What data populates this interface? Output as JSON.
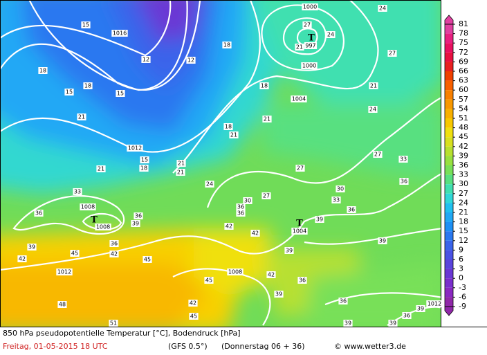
{
  "map": {
    "legend": {
      "ticks": [
        81,
        78,
        75,
        72,
        69,
        66,
        63,
        60,
        57,
        54,
        51,
        48,
        45,
        42,
        39,
        36,
        33,
        30,
        27,
        24,
        21,
        18,
        15,
        12,
        9,
        6,
        3,
        0,
        -3,
        -6,
        -9
      ],
      "colors": [
        "#e040a0",
        "#e82080",
        "#e81060",
        "#e81040",
        "#e82020",
        "#f04000",
        "#f86000",
        "#f88000",
        "#f89800",
        "#f8b000",
        "#f8c800",
        "#f0e010",
        "#d8e020",
        "#b8e030",
        "#98e040",
        "#78e058",
        "#58e080",
        "#40e0b0",
        "#30d8d8",
        "#20c0f0",
        "#20a8f5",
        "#1e90f5",
        "#2a78f0",
        "#3a64ea",
        "#4a52e4",
        "#5a44dc",
        "#6a38d4",
        "#7a2ecc",
        "#8a28c0",
        "#9028a8"
      ]
    },
    "low_symbol": "T",
    "isobar_labels": [
      1016,
      1000,
      997,
      1000,
      1004,
      1012,
      1008,
      1008,
      1004,
      1012,
      1008,
      1012
    ],
    "isotherm_labels": [
      15,
      12,
      12,
      18,
      18,
      15,
      15,
      18,
      18,
      21,
      21,
      18,
      21,
      15,
      18,
      21,
      21,
      21,
      24,
      27,
      24,
      21,
      27,
      24,
      27,
      30,
      33,
      36,
      27,
      30,
      36,
      36,
      33,
      36,
      36,
      39,
      33,
      36,
      39,
      42,
      42,
      39,
      36,
      39,
      42,
      45,
      42,
      45,
      39,
      42,
      45,
      42,
      45,
      48,
      51,
      36,
      39,
      36,
      39,
      36,
      39,
      39,
      27,
      24,
      21
    ],
    "footer": {
      "title": "850 hPa pseudopotentielle Temperatur [°C], Bodendruck [hPa]",
      "date": "Freitag, 01-05-2015   18 UTC",
      "model": "(GFS 0.5°)",
      "run": "(Donnerstag 06 + 36)",
      "copyright": "© www.wetter3.de"
    }
  }
}
